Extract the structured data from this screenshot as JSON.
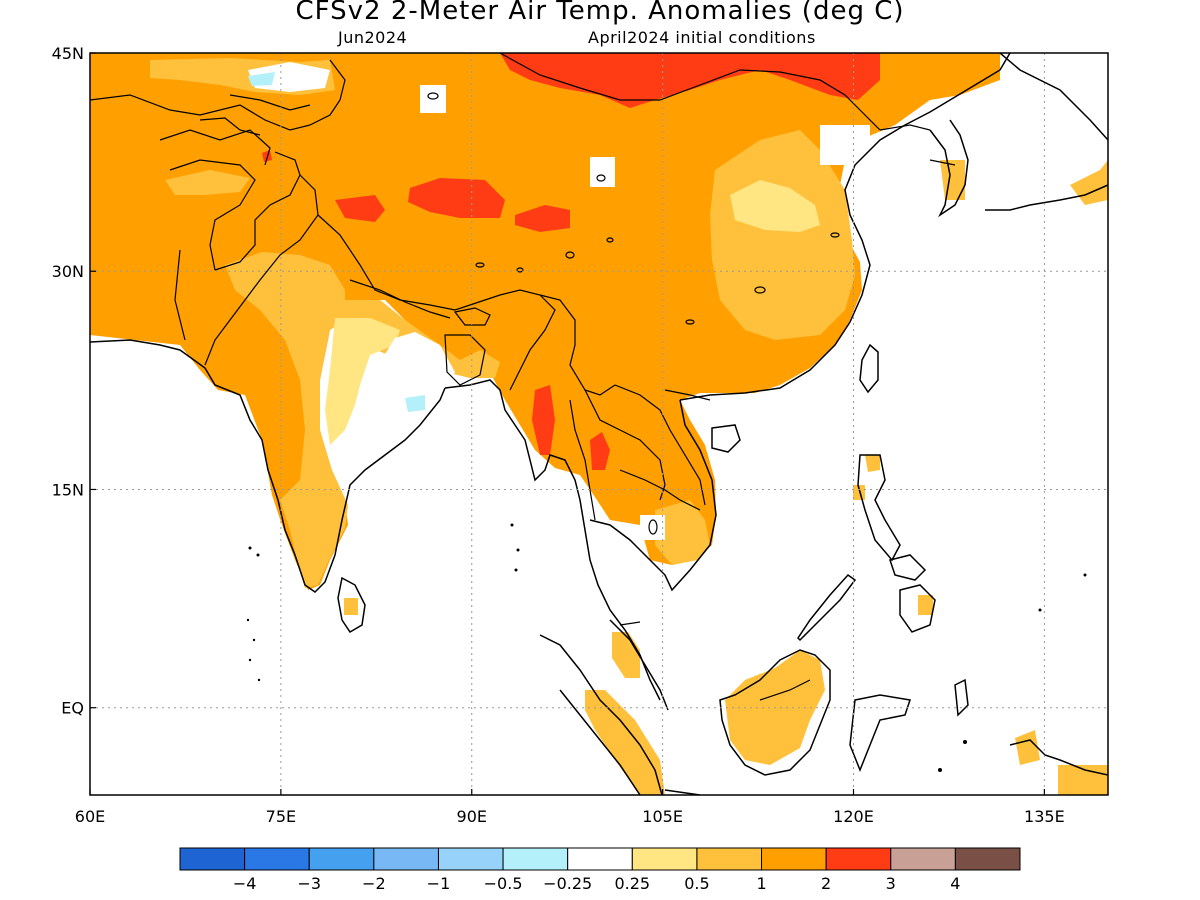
{
  "title": "CFSv2 2-Meter Air Temp. Anomalies (deg C)",
  "subtitle_left": "Jun2024",
  "subtitle_right": "April2024 initial conditions",
  "map": {
    "lon_range": [
      60,
      140
    ],
    "lat_range": [
      -6,
      45
    ],
    "x_ticks": [
      "60E",
      "75E",
      "90E",
      "105E",
      "120E",
      "135E"
    ],
    "y_ticks": [
      "45N",
      "30N",
      "15N",
      "EQ"
    ],
    "grid_lines": "dotted"
  },
  "colorbar": {
    "colors": [
      "#1e64d2",
      "#2a78e6",
      "#46a0f0",
      "#78b9f5",
      "#96d2fa",
      "#b4f0fa",
      "#ffffff",
      "#ffe682",
      "#ffc03c",
      "#ffa000",
      "#ff3c14",
      "#c8a096",
      "#7a5046"
    ],
    "labels": [
      "-4",
      "-3",
      "-2",
      "-1",
      "-0.5",
      "-0.25",
      "0.25",
      "0.5",
      "1",
      "2",
      "3",
      "4"
    ]
  },
  "legend_classes": {
    "c_0_5": "#ffe682",
    "c_1": "#ffc03c",
    "c_2": "#ffa000",
    "c_3": "#ff3c14",
    "neg": "#b4f0fa",
    "neutral": "#ffffff"
  }
}
